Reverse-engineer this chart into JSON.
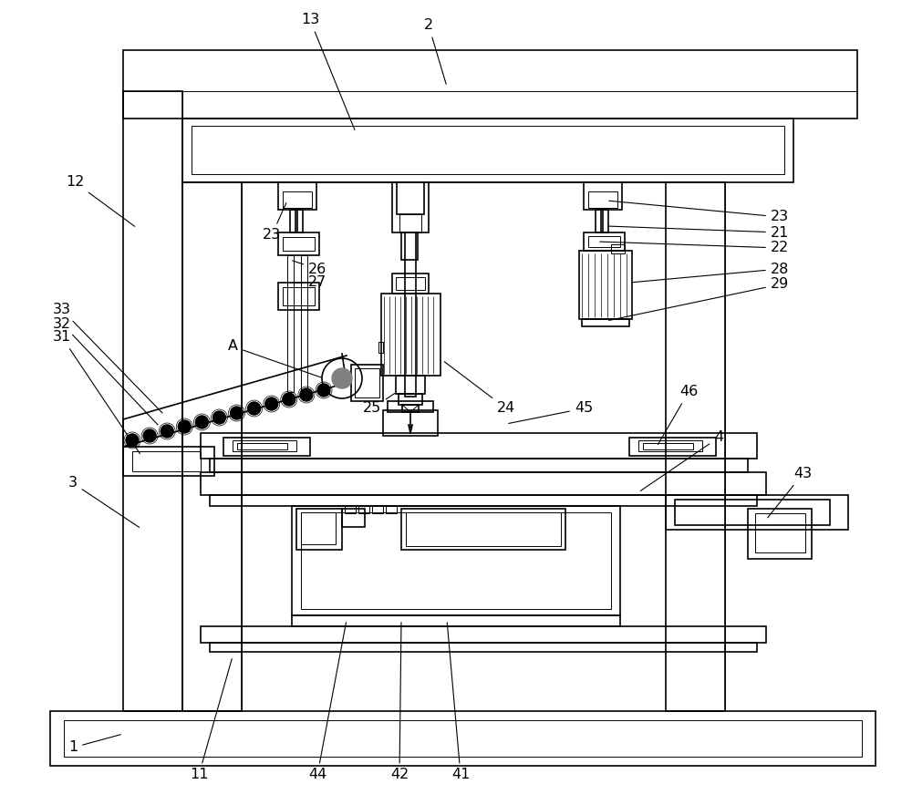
{
  "bg_color": "#ffffff",
  "line_color": "#000000",
  "lw": 1.2,
  "tlw": 0.7,
  "fig_width": 10.0,
  "fig_height": 8.83
}
